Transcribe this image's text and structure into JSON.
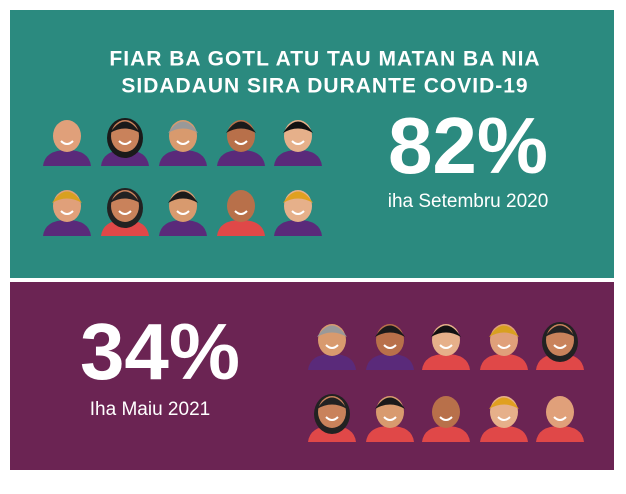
{
  "header": {
    "title_lines": [
      "FIAR BA GOTL ATU TAU MATAN BA NIA",
      "SIDADAUN SIRA DURANTE COVID-19"
    ]
  },
  "panels": [
    {
      "figure": "82%",
      "caption": "iha Setembru 2020"
    },
    {
      "figure": "34%",
      "caption": "Iha Maiu 2021"
    }
  ]
}
